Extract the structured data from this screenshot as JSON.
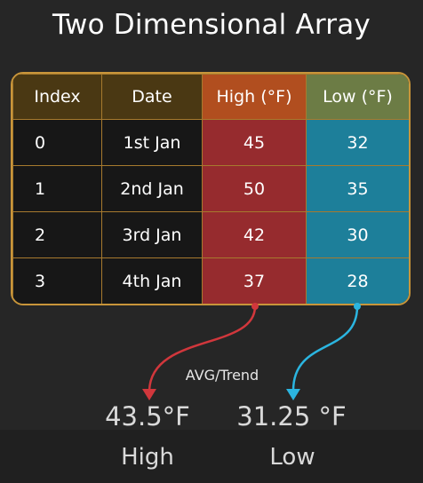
{
  "title": "Two Dimensional Array",
  "table": {
    "headers": {
      "index": "Index",
      "date": "Date",
      "high": "High (°F)",
      "low": "Low (°F)"
    },
    "rows": [
      {
        "index": "0",
        "date": "1st Jan",
        "high": "45",
        "low": "32"
      },
      {
        "index": "1",
        "date": "2nd Jan",
        "high": "50",
        "low": "35"
      },
      {
        "index": "2",
        "date": "3rd Jan",
        "high": "42",
        "low": "30"
      },
      {
        "index": "3",
        "date": "4th Jan",
        "high": "37",
        "low": "28"
      }
    ]
  },
  "trend_label": "AVG/Trend",
  "summary": {
    "high": {
      "value": "43.5°F",
      "label": "High"
    },
    "low": {
      "value": "31.25 °F",
      "label": "Low"
    }
  },
  "colors": {
    "background": "#262626",
    "table_border": "#c8953a",
    "high_header": "#b14e1f",
    "low_header": "#6c7c45",
    "high_cells": "#962b2e",
    "low_cells": "#1d7f9a",
    "high_arrow": "#d1373c",
    "low_arrow": "#2bb5e0"
  }
}
